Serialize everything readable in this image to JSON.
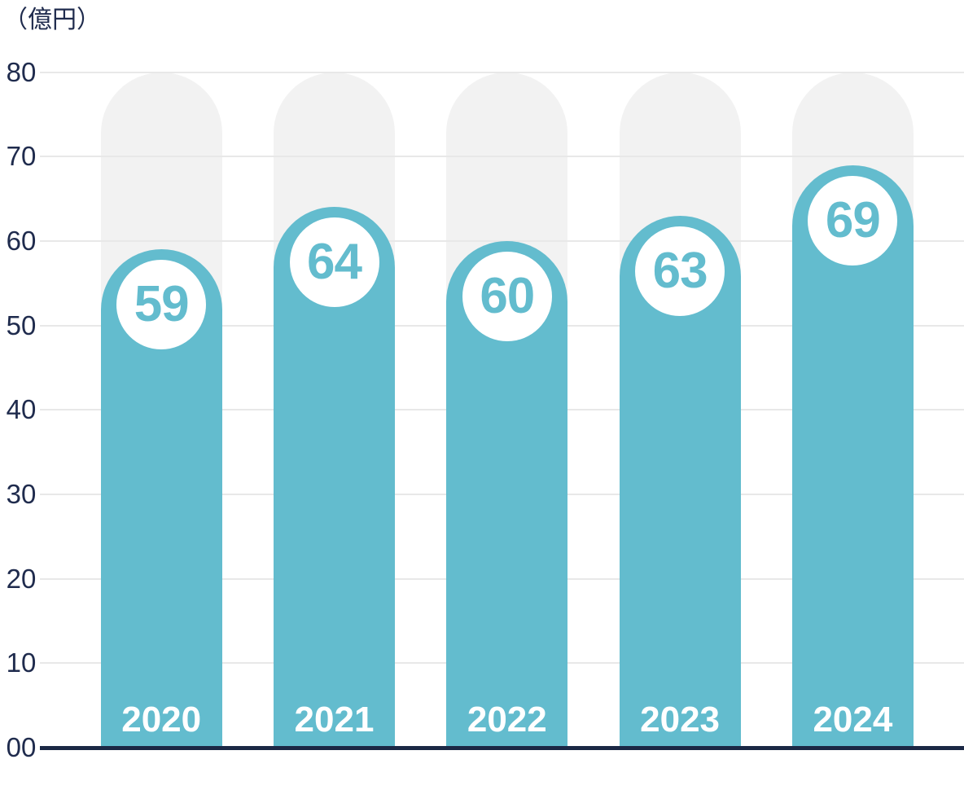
{
  "chart_data": {
    "type": "bar",
    "title": "",
    "unit_label": "（億円）",
    "categories": [
      "2020",
      "2021",
      "2022",
      "2023",
      "2024"
    ],
    "values": [
      59,
      64,
      60,
      63,
      69
    ],
    "xlabel": "",
    "ylabel": "億円",
    "ylim": [
      0,
      80
    ],
    "ytick_values": [
      80,
      70,
      60,
      50,
      40,
      30,
      20,
      10,
      0
    ],
    "ytick_labels": [
      "80",
      "70",
      "60",
      "50",
      "40",
      "30",
      "20",
      "10",
      "00"
    ],
    "grid": true,
    "legend_position": "none",
    "track_top_value": 80,
    "colors": {
      "bar": "#63bcce",
      "track": "#f2f2f2",
      "gridline": "#e8e8e8",
      "axis_line": "#1b2845",
      "tick_text": "#1f2b4d",
      "value_text": "#63bcce",
      "value_circle": "#ffffff",
      "category_text": "#ffffff",
      "background": "#ffffff"
    }
  }
}
